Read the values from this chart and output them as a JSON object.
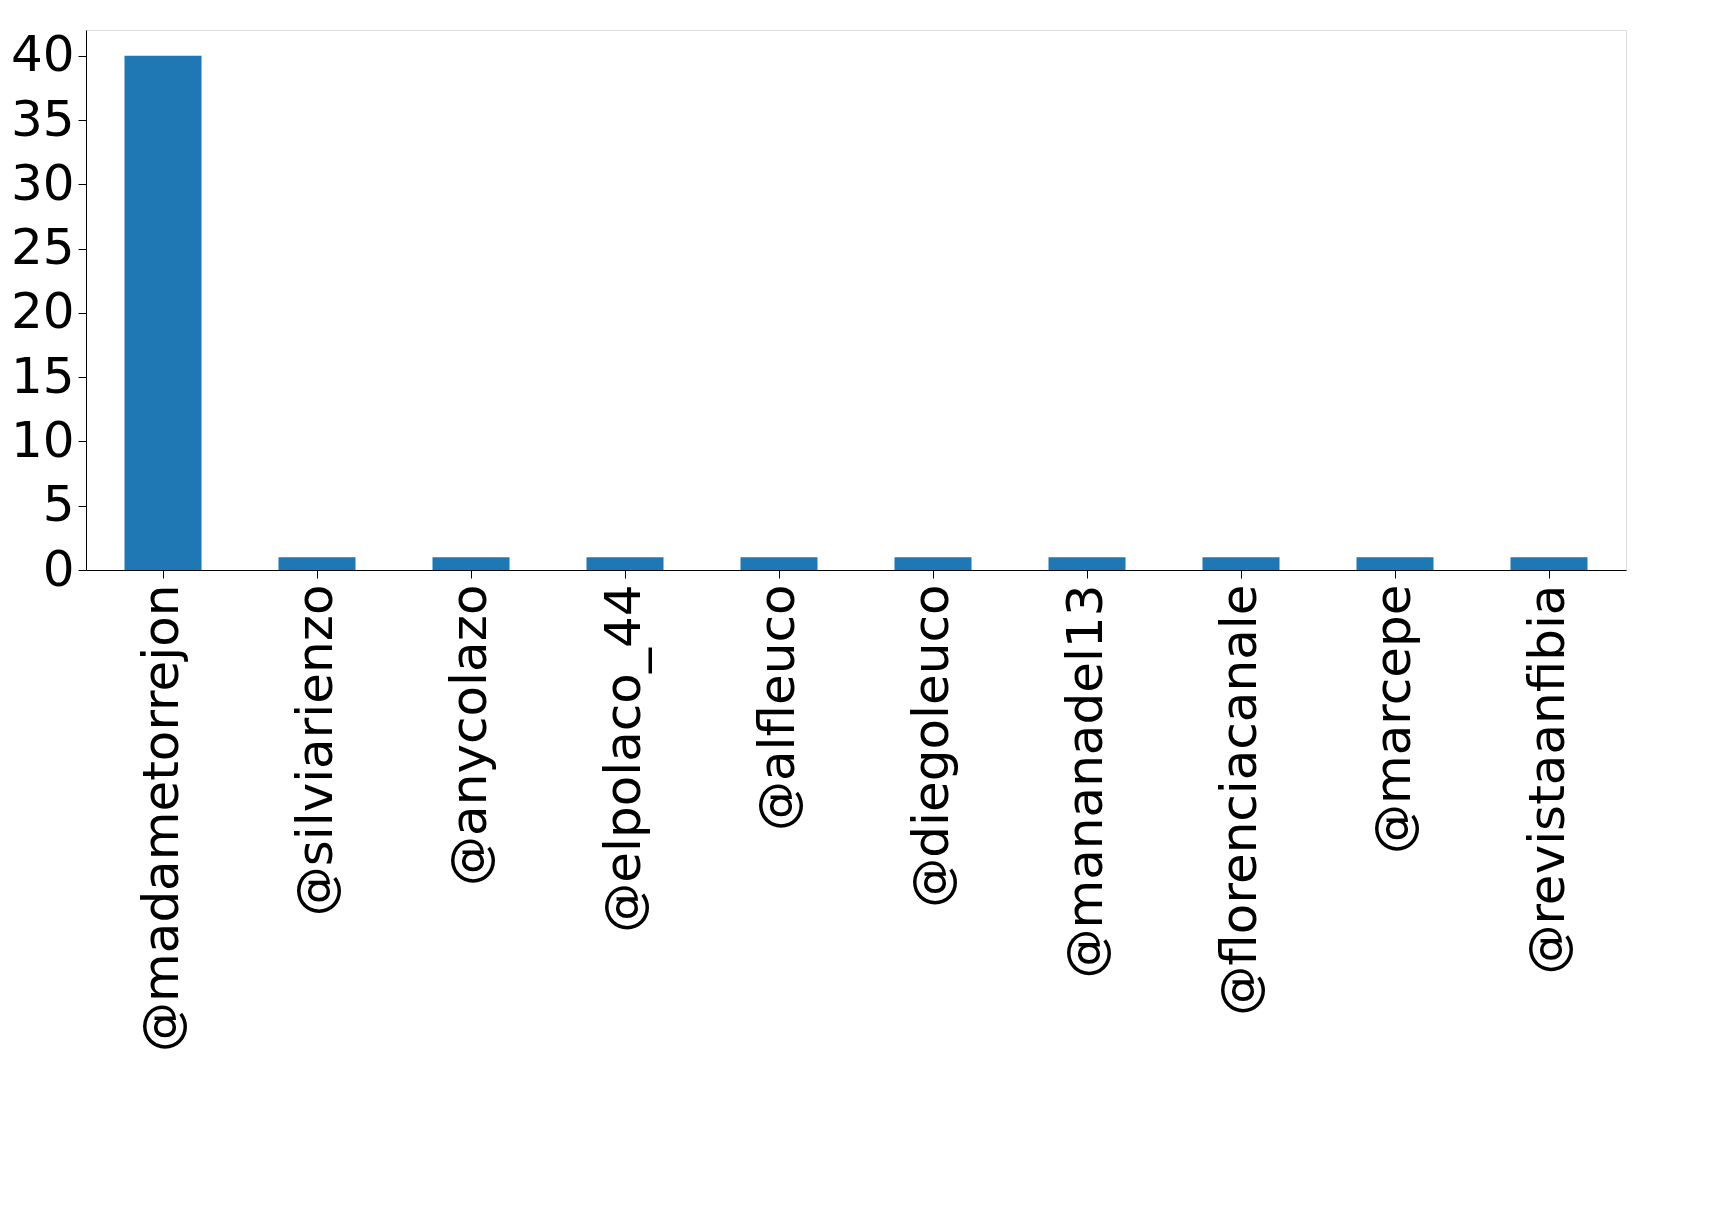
{
  "chart_data": {
    "type": "bar",
    "categories": [
      "@madametorrejon",
      "@silviarienzo",
      "@anycolazo",
      "@elpolaco_44",
      "@alfleuco",
      "@diegoleuco",
      "@mananadel13",
      "@florenciacanale",
      "@marcepe",
      "@revistaanfibia"
    ],
    "values": [
      40,
      1,
      1,
      1,
      1,
      1,
      1,
      1,
      1,
      1
    ],
    "color": "#1f77b4",
    "ylim": [
      0,
      42
    ],
    "yticks": [
      0,
      5,
      10,
      15,
      20,
      25,
      30,
      35,
      40
    ],
    "grid": false
  }
}
